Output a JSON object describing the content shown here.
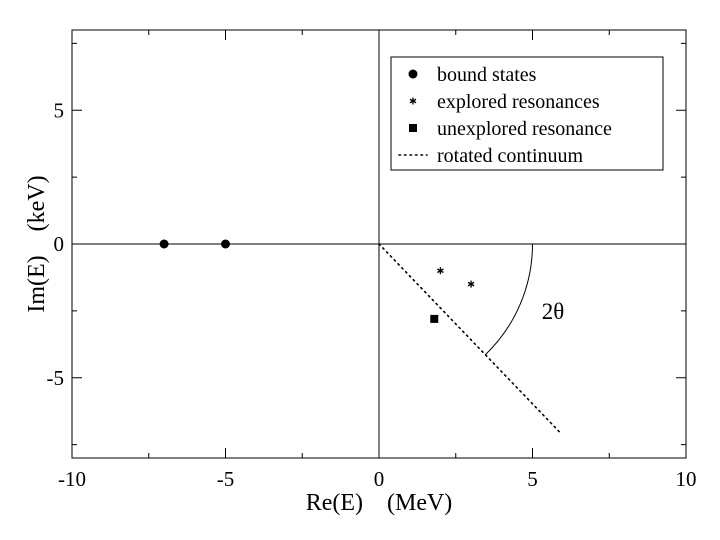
{
  "chart_data": {
    "type": "scatter",
    "xlabel": "Re(E)    (MeV)",
    "ylabel": "Im(E)    (keV)",
    "xlim": [
      -10,
      10
    ],
    "ylim": [
      -8,
      8
    ],
    "x_ticks": [
      -10,
      -5,
      0,
      5,
      10
    ],
    "y_ticks": [
      -5,
      0,
      5
    ],
    "x_tick_labels": [
      "-10",
      "-5",
      "0",
      "5",
      "10"
    ],
    "y_tick_labels": [
      "-5",
      "0",
      "5"
    ],
    "grid": false,
    "legend_position": "top-right",
    "series": [
      {
        "name": "bound states",
        "marker": "circle",
        "x": [
          -7,
          -5
        ],
        "y": [
          0,
          0
        ]
      },
      {
        "name": "explored resonances",
        "marker": "asterisk",
        "x": [
          2,
          3
        ],
        "y": [
          -1,
          -1.5
        ]
      },
      {
        "name": "unexplored resonance",
        "marker": "square",
        "x": [
          1.8
        ],
        "y": [
          -2.8
        ]
      },
      {
        "name": "rotated continuum",
        "marker": "dotted-line",
        "x": [
          0,
          5.9
        ],
        "y": [
          0,
          -7.05
        ]
      }
    ],
    "annotations": [
      {
        "text": "2θ",
        "x": 5.3,
        "y": -2.5
      }
    ]
  }
}
